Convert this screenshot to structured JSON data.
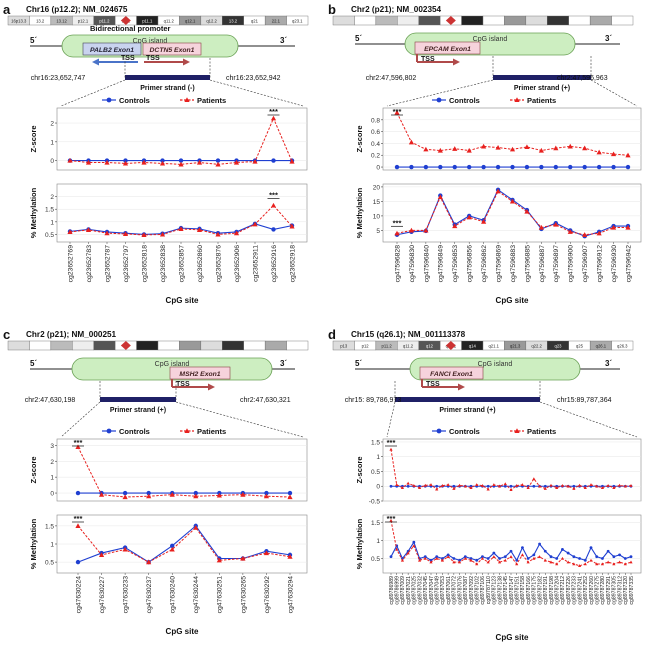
{
  "colors": {
    "controls": "#1f3fd1",
    "patients": "#e8201e",
    "island_fill": "#cdeec1",
    "island_stroke": "#6aa155",
    "exon_palb2": "#c9d3ef",
    "exon_other": "#f6d3dc",
    "arrow_blue": "#4a73c8",
    "arrow_red": "#b04a4a",
    "strand": "#1f2066"
  },
  "legend": {
    "controls": "Controls",
    "patients": "Patients"
  },
  "common": {
    "prime5": "5´",
    "prime3": "3´",
    "tss": "TSS",
    "cpg_island": "CpG island",
    "zlabel": "Z-score",
    "mlabel": "% Methylation",
    "xlabel": "CpG site",
    "signif": "***"
  },
  "panels": [
    {
      "letter": "a",
      "title": "Chr16 (p12.2); NM_024675",
      "karyo_bands": [
        "16p13.3",
        "13.2",
        "13.12",
        "p12.1",
        "p11.2",
        "13.2",
        "p11.1",
        "q11.2",
        "q12.1",
        "q12.2",
        "13.2",
        "q21",
        "22.1",
        "q23.1"
      ],
      "promoter": "Bidirectional promoter",
      "exons": [
        "PALB2 Exon1",
        "DCTN5 Exon1"
      ],
      "strand": "Primer strand (-)",
      "left_coord": "chr16:23,652,747",
      "right_coord": "chr16:23,652,942"
    },
    {
      "letter": "b",
      "title": "Chr2 (p21); NM_002354",
      "exons": [
        "EPCAM Exon1"
      ],
      "strand": "Primer strand (+)",
      "left_coord": "chr2:47,596,802",
      "right_coord": "chr2:47,596,963"
    },
    {
      "letter": "c",
      "title": "Chr2 (p21); NM_000251",
      "exons": [
        "MSH2 Exon1"
      ],
      "strand": "Primer strand (+)",
      "left_coord": "chr2:47,630,198",
      "right_coord": "chr2:47,630,321"
    },
    {
      "letter": "d",
      "title": "Chr15 (q26.1); NM_001113378",
      "karyo_bands": [
        "p13",
        "p12",
        "p11.2",
        "q11.2",
        "q12",
        "q13.1",
        "q14",
        "q21.1",
        "q21.3",
        "q22.2",
        "q23",
        "q25",
        "q26.1",
        "q26.3"
      ],
      "exons": [
        "FANCI Exon1"
      ],
      "strand": "Primer strand (+)",
      "left_coord": "chr15: 89,786,973",
      "right_coord": "chr15:89,787,364"
    }
  ],
  "chart_data": [
    {
      "panel": "a",
      "type": "line",
      "xlabel": "CpG site",
      "categories": [
        "cg23652769",
        "cg23652783",
        "cg23652787",
        "cg23652797",
        "cg23652818",
        "cg23652838",
        "cg23652857",
        "cg23652860",
        "cg23652876",
        "cg23652906",
        "cg23652911",
        "cg23652916",
        "cg23652918"
      ],
      "zscore": {
        "ylabel": "Z-score",
        "ylim": [
          -0.5,
          2.8
        ],
        "ticks": [
          0,
          1,
          2
        ],
        "series": [
          {
            "name": "Controls",
            "values": [
              0,
              0,
              0,
              0,
              0,
              0,
              0,
              0,
              0,
              0,
              0,
              0,
              0
            ]
          },
          {
            "name": "Patients",
            "values": [
              0,
              -0.1,
              -0.1,
              -0.15,
              -0.1,
              -0.15,
              -0.2,
              -0.1,
              -0.2,
              -0.1,
              -0.05,
              2.25,
              -0.05
            ]
          }
        ],
        "significant": [
          11
        ]
      },
      "methylation": {
        "ylabel": "% Methylation",
        "ylim": [
          0.2,
          2.5
        ],
        "ticks": [
          0.5,
          1.0,
          1.5,
          2.0
        ],
        "series": [
          {
            "name": "Controls",
            "values": [
              0.62,
              0.7,
              0.6,
              0.55,
              0.5,
              0.53,
              0.75,
              0.72,
              0.55,
              0.6,
              0.92,
              0.7,
              0.85
            ]
          },
          {
            "name": "Patients",
            "values": [
              0.6,
              0.68,
              0.55,
              0.52,
              0.48,
              0.5,
              0.72,
              0.68,
              0.5,
              0.55,
              0.9,
              1.65,
              0.82
            ]
          }
        ],
        "significant": [
          11
        ]
      }
    },
    {
      "panel": "b",
      "type": "line",
      "xlabel": "CpG site",
      "categories": [
        "cg47596828",
        "cg47596830",
        "cg47596840",
        "cg47596849",
        "cg47596853",
        "cg47596856",
        "cg47596862",
        "cg47596869",
        "cg47596883",
        "cg47596885",
        "cg47596887",
        "cg47596897",
        "cg47596900",
        "cg47596907",
        "cg47596912",
        "cg47596930",
        "cg47596942"
      ],
      "zscore": {
        "ylabel": "Z-score",
        "ylim": [
          -0.05,
          1.0
        ],
        "ticks": [
          0.0,
          0.2,
          0.4,
          0.6,
          0.8
        ],
        "series": [
          {
            "name": "Controls",
            "values": [
              0,
              0,
              0,
              0,
              0,
              0,
              0,
              0,
              0,
              0,
              0,
              0,
              0,
              0,
              0,
              0,
              0
            ]
          },
          {
            "name": "Patients",
            "values": [
              0.92,
              0.42,
              0.3,
              0.28,
              0.31,
              0.28,
              0.35,
              0.33,
              0.3,
              0.34,
              0.28,
              0.32,
              0.35,
              0.32,
              0.25,
              0.22,
              0.2
            ]
          }
        ],
        "significant": [
          0
        ]
      },
      "methylation": {
        "ylabel": "% Methylation",
        "ylim": [
          1,
          21
        ],
        "ticks": [
          5,
          10,
          15,
          20
        ],
        "series": [
          {
            "name": "Controls",
            "values": [
              3.5,
              4.5,
              4.8,
              17,
              7,
              10,
              8.5,
              19,
              15.5,
              12,
              5.5,
              7.5,
              5,
              3,
              4.5,
              6.5,
              6.5
            ]
          },
          {
            "name": "Patients",
            "values": [
              4,
              5,
              5,
              16.5,
              6.5,
              9.5,
              8,
              18.5,
              15,
              11.5,
              6,
              7,
              4.5,
              3.5,
              4,
              6,
              6
            ]
          }
        ],
        "significant": [
          0
        ]
      }
    },
    {
      "panel": "c",
      "type": "line",
      "xlabel": "CpG site",
      "categories": [
        "cg47630224",
        "cg47630227",
        "cg47630233",
        "cg47630237",
        "cg47630240",
        "cg47630244",
        "cg47630251",
        "cg47630265",
        "cg47630292",
        "cg47630294"
      ],
      "zscore": {
        "ylabel": "Z-score",
        "ylim": [
          -0.5,
          3.4
        ],
        "ticks": [
          0,
          1,
          2,
          3
        ],
        "series": [
          {
            "name": "Controls",
            "values": [
              0,
              0,
              0,
              0,
              0,
              0,
              0,
              0,
              0,
              0
            ]
          },
          {
            "name": "Patients",
            "values": [
              2.9,
              -0.1,
              -0.25,
              -0.2,
              -0.1,
              -0.2,
              -0.15,
              -0.1,
              -0.2,
              -0.25
            ]
          }
        ],
        "significant": [
          0
        ]
      },
      "methylation": {
        "ylabel": "% Methylation",
        "ylim": [
          0.2,
          1.8
        ],
        "ticks": [
          0.5,
          1.0,
          1.5
        ],
        "series": [
          {
            "name": "Controls",
            "values": [
              0.5,
              0.75,
              0.9,
              0.5,
              0.95,
              1.5,
              0.6,
              0.6,
              0.8,
              0.7
            ]
          },
          {
            "name": "Patients",
            "values": [
              1.5,
              0.7,
              0.85,
              0.5,
              0.85,
              1.45,
              0.55,
              0.6,
              0.75,
              0.65
            ]
          }
        ],
        "significant": [
          0
        ]
      }
    },
    {
      "panel": "d",
      "type": "line",
      "xlabel": "CpG site",
      "categories": [
        "cg89786989",
        "cg89786999",
        "cg89787009",
        "cg89787021",
        "cg89787025",
        "cg89787032",
        "cg89787045",
        "cg89787047",
        "cg89787049",
        "cg89787053",
        "cg89787061",
        "cg89787072",
        "cg89787076",
        "cg89787087",
        "cg89787092",
        "cg89787102",
        "cg89787106",
        "cg89787110",
        "cg89787123",
        "cg89787138",
        "cg89787145",
        "cg89787147",
        "cg89787151",
        "cg89787158",
        "cg89787166",
        "cg89787175",
        "cg89787182",
        "cg89787191",
        "cg89787198",
        "cg89787204",
        "cg89787212",
        "cg89787226",
        "cg89787233",
        "cg89787241",
        "cg89787252",
        "cg89787260",
        "cg89787275",
        "cg89787280",
        "cg89787291",
        "cg89787305",
        "cg89787312",
        "cg89787320",
        "cg89787335"
      ],
      "zscore": {
        "ylabel": "Z-score",
        "ylim": [
          -0.5,
          1.6
        ],
        "ticks": [
          -0.5,
          0.0,
          0.5,
          1.0,
          1.5
        ],
        "series": [
          {
            "name": "Controls",
            "values": [
              0,
              0,
              0,
              0,
              0,
              0,
              0,
              0,
              0,
              0,
              0,
              0,
              0,
              0,
              0,
              0,
              0,
              0,
              0,
              0,
              0,
              0,
              0,
              0,
              0,
              0,
              0,
              0,
              0,
              0,
              0,
              0,
              0,
              0,
              0,
              0,
              0,
              0,
              0,
              0,
              0,
              0,
              0
            ]
          },
          {
            "name": "Patients",
            "values": [
              1.25,
              0.05,
              -0.05,
              0.1,
              0.02,
              -0.05,
              0.03,
              0.05,
              -0.1,
              0.02,
              0.05,
              -0.08,
              0.03,
              0.0,
              -0.05,
              0.05,
              0.02,
              -0.1,
              0.05,
              0.0,
              0.08,
              -0.12,
              0.02,
              0.05,
              -0.05,
              0.25,
              0.0,
              -0.08,
              0.03,
              -0.05,
              0.02,
              0.0,
              -0.08,
              0.03,
              -0.05,
              0.05,
              0.0,
              -0.05,
              0.02,
              -0.05,
              0.03,
              0.0,
              0.02
            ]
          }
        ],
        "significant": [
          0
        ]
      },
      "methylation": {
        "ylabel": "% Methylation",
        "ylim": [
          0.1,
          1.7
        ],
        "ticks": [
          0.5,
          1.0,
          1.5
        ],
        "series": [
          {
            "name": "Controls",
            "values": [
              0.55,
              0.85,
              0.5,
              0.7,
              0.95,
              0.5,
              0.55,
              0.45,
              0.55,
              0.5,
              0.6,
              0.5,
              0.45,
              0.55,
              0.5,
              0.45,
              0.55,
              0.5,
              0.65,
              0.5,
              0.55,
              0.7,
              0.45,
              0.8,
              0.5,
              0.6,
              0.9,
              0.7,
              0.55,
              0.5,
              0.75,
              0.65,
              0.55,
              0.5,
              0.45,
              0.8,
              0.55,
              0.5,
              0.7,
              0.55,
              0.6,
              0.5,
              0.55
            ]
          },
          {
            "name": "Patients",
            "values": [
              1.55,
              0.75,
              0.45,
              0.65,
              0.85,
              0.45,
              0.5,
              0.4,
              0.5,
              0.45,
              0.55,
              0.4,
              0.4,
              0.5,
              0.45,
              0.35,
              0.5,
              0.4,
              0.55,
              0.4,
              0.45,
              0.55,
              0.35,
              0.6,
              0.4,
              0.5,
              0.55,
              0.45,
              0.4,
              0.35,
              0.5,
              0.4,
              0.35,
              0.3,
              0.35,
              0.45,
              0.35,
              0.35,
              0.4,
              0.35,
              0.4,
              0.35,
              0.4
            ]
          }
        ],
        "significant": [
          0
        ]
      }
    }
  ]
}
